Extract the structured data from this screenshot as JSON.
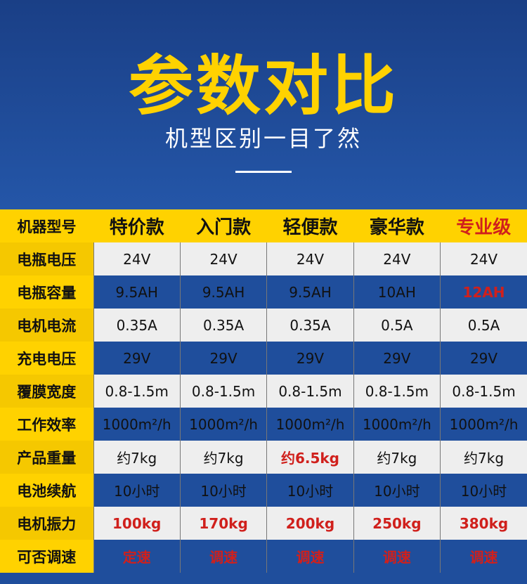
{
  "header": {
    "title": "参数对比",
    "subtitle": "机型区别一目了然"
  },
  "colors": {
    "brand_blue": "#1f4e9c",
    "accent_yellow": "#ffd200",
    "highlight_red": "#d0201c"
  },
  "table": {
    "columns": [
      "机器型号",
      "特价款",
      "入门款",
      "轻便款",
      "豪华款",
      "专业级"
    ],
    "highlighted_columns": [
      "专业级"
    ],
    "rows": [
      {
        "label": "电瓶电压",
        "values": [
          "24V",
          "24V",
          "24V",
          "24V",
          "24V"
        ],
        "red": []
      },
      {
        "label": "电瓶容量",
        "values": [
          "9.5AH",
          "9.5AH",
          "9.5AH",
          "10AH",
          "12AH"
        ],
        "red": [
          4
        ]
      },
      {
        "label": "电机电流",
        "values": [
          "0.35A",
          "0.35A",
          "0.35A",
          "0.5A",
          "0.5A"
        ],
        "red": []
      },
      {
        "label": "充电电压",
        "values": [
          "29V",
          "29V",
          "29V",
          "29V",
          "29V"
        ],
        "red": []
      },
      {
        "label": "覆膜宽度",
        "values": [
          "0.8-1.5m",
          "0.8-1.5m",
          "0.8-1.5m",
          "0.8-1.5m",
          "0.8-1.5m"
        ],
        "red": []
      },
      {
        "label": "工作效率",
        "values": [
          "1000m²/h",
          "1000m²/h",
          "1000m²/h",
          "1000m²/h",
          "1000m²/h"
        ],
        "red": []
      },
      {
        "label": "产品重量",
        "values": [
          "约7kg",
          "约7kg",
          "约6.5kg",
          "约7kg",
          "约7kg"
        ],
        "red": [
          2
        ]
      },
      {
        "label": "电池续航",
        "values": [
          "10小时",
          "10小时",
          "10小时",
          "10小时",
          "10小时"
        ],
        "red": []
      },
      {
        "label": "电机振力",
        "values": [
          "100kg",
          "170kg",
          "200kg",
          "250kg",
          "380kg"
        ],
        "red": [
          0,
          1,
          2,
          3,
          4
        ]
      },
      {
        "label": "可否调速",
        "values": [
          "定速",
          "调速",
          "调速",
          "调速",
          "调速"
        ],
        "red": [
          0,
          1,
          2,
          3,
          4
        ]
      }
    ]
  }
}
